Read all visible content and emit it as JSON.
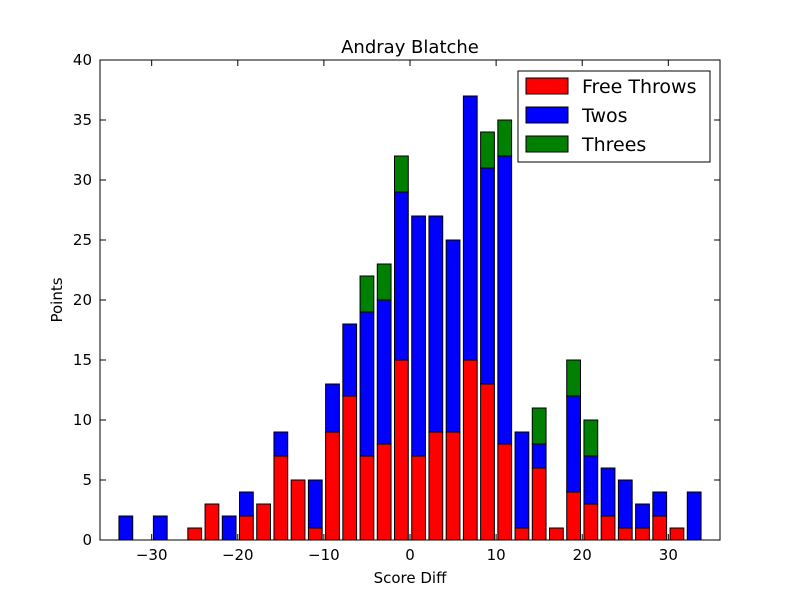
{
  "chart_data": {
    "type": "bar",
    "stacked": true,
    "title": "Andray Blatche",
    "xlabel": "Score Diff",
    "ylabel": "Points",
    "xlim": [
      -36,
      36
    ],
    "ylim": [
      0,
      40
    ],
    "x_ticks": [
      -30,
      -20,
      -10,
      0,
      10,
      20,
      30
    ],
    "y_ticks": [
      0,
      5,
      10,
      15,
      20,
      25,
      30,
      35,
      40
    ],
    "x_tick_labels": [
      "−30",
      "−20",
      "−10",
      "0",
      "10",
      "20",
      "30"
    ],
    "y_tick_labels": [
      "0",
      "5",
      "10",
      "15",
      "20",
      "25",
      "30",
      "35",
      "40"
    ],
    "legend_position": "top-right",
    "grid": false,
    "x": [
      -35,
      -33,
      -31,
      -29,
      -27,
      -25,
      -23,
      -21,
      -19,
      -17,
      -15,
      -13,
      -11,
      -9,
      -7,
      -5,
      -3,
      -1,
      1,
      3,
      5,
      7,
      9,
      11,
      13,
      15,
      17,
      19,
      21,
      23,
      25,
      27,
      29,
      31,
      33,
      35
    ],
    "series": [
      {
        "name": "Free Throws",
        "color": "#ff0000",
        "values": [
          0,
          0,
          0,
          0,
          0,
          1,
          3,
          0,
          2,
          3,
          7,
          5,
          1,
          9,
          12,
          7,
          8,
          15,
          7,
          9,
          9,
          15,
          13,
          8,
          1,
          6,
          1,
          4,
          3,
          2,
          1,
          1,
          2,
          1,
          0,
          0
        ]
      },
      {
        "name": "Twos",
        "color": "#0000ff",
        "values": [
          0,
          2,
          0,
          2,
          0,
          0,
          0,
          2,
          2,
          0,
          2,
          0,
          4,
          4,
          6,
          12,
          12,
          14,
          20,
          18,
          16,
          22,
          18,
          24,
          8,
          2,
          0,
          8,
          4,
          4,
          4,
          2,
          2,
          0,
          4,
          0
        ]
      },
      {
        "name": "Threes",
        "color": "#008000",
        "values": [
          0,
          0,
          0,
          0,
          0,
          0,
          0,
          0,
          0,
          0,
          0,
          0,
          0,
          0,
          0,
          3,
          3,
          3,
          0,
          0,
          0,
          0,
          3,
          3,
          0,
          3,
          0,
          3,
          3,
          0,
          0,
          0,
          0,
          0,
          0,
          0
        ]
      }
    ]
  }
}
